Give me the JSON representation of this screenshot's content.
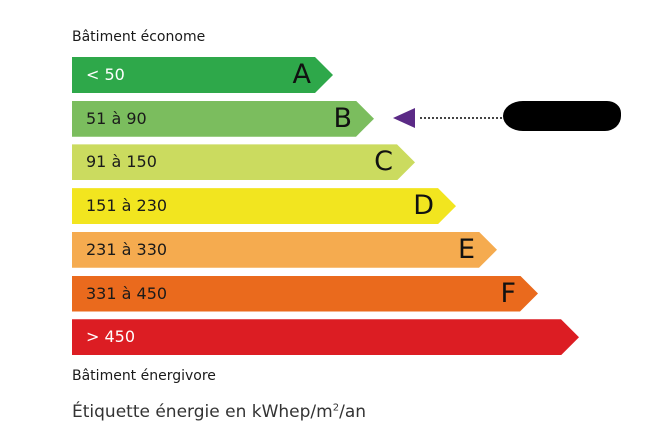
{
  "top_label": "Bâtiment économe",
  "bottom_label": "Bâtiment énergivore",
  "footnote": {
    "prefix": "Étiquette énergie en kWhep/m",
    "sup": "2",
    "suffix": "/an"
  },
  "classes": [
    {
      "letter": "A",
      "range": "< 50",
      "color": "#2ea84a"
    },
    {
      "letter": "B",
      "range": "51 à 90",
      "color": "#7bbd5e"
    },
    {
      "letter": "C",
      "range": "91 à 150",
      "color": "#cbdb5f"
    },
    {
      "letter": "D",
      "range": "151 à 230",
      "color": "#f2e51f"
    },
    {
      "letter": "E",
      "range": "231 à 330",
      "color": "#f5ab4f"
    },
    {
      "letter": "F",
      "range": "331 à 450",
      "color": "#ea6a1d"
    },
    {
      "letter": "",
      "range": "> 450",
      "color": "#dc1d23"
    }
  ],
  "indicator": {
    "class": "B",
    "color": "#5b2a86",
    "value": "redacted"
  }
}
